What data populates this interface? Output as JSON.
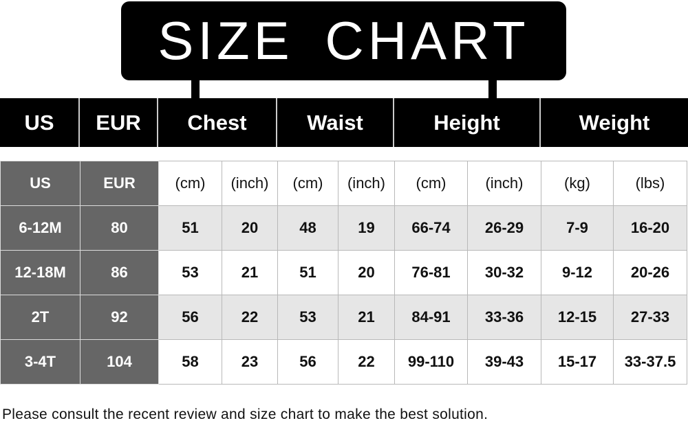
{
  "title": "SIZE CHART",
  "header": [
    "US",
    "EUR",
    "Chest",
    "Waist",
    "Height",
    "Weight"
  ],
  "units_row": [
    "US",
    "EUR",
    "(cm)",
    "(inch)",
    "(cm)",
    "(inch)",
    "(cm)",
    "(inch)",
    "(kg)",
    "(lbs)"
  ],
  "rows": [
    [
      "6-12M",
      "80",
      "51",
      "20",
      "48",
      "19",
      "66-74",
      "26-29",
      "7-9",
      "16-20"
    ],
    [
      "12-18M",
      "86",
      "53",
      "21",
      "51",
      "20",
      "76-81",
      "30-32",
      "9-12",
      "20-26"
    ],
    [
      "2T",
      "92",
      "56",
      "22",
      "53",
      "21",
      "84-91",
      "33-36",
      "12-15",
      "27-33"
    ],
    [
      "3-4T",
      "104",
      "58",
      "23",
      "56",
      "22",
      "99-110",
      "39-43",
      "15-17",
      "33-37.5"
    ]
  ],
  "footer": "Please consult the recent review and size chart to make the best solution."
}
